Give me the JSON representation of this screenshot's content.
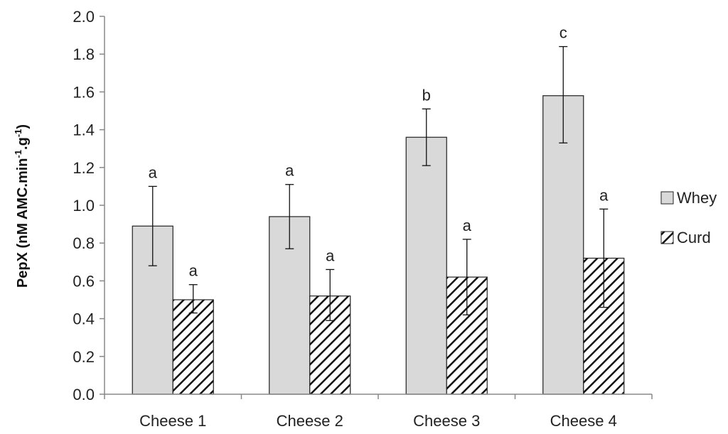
{
  "chart_data": {
    "type": "bar",
    "title": "",
    "xlabel": "",
    "ylabel": {
      "prefix": "PepX (nM AMC.min",
      "sup1": "-1",
      "middle": ".g",
      "sup2": "-1",
      "suffix": ")"
    },
    "ylim": [
      0,
      2.0
    ],
    "yticks": [
      "0.0",
      "0.2",
      "0.4",
      "0.6",
      "0.8",
      "1.0",
      "1.2",
      "1.4",
      "1.6",
      "1.8",
      "2.0"
    ],
    "categories": [
      "Cheese 1",
      "Cheese 2",
      "Cheese 3",
      "Cheese 4"
    ],
    "series": [
      {
        "name": "Whey",
        "pattern": "solid",
        "color": "#d9d9d9",
        "values": [
          0.89,
          0.94,
          1.36,
          1.58
        ],
        "error_low": [
          0.68,
          0.77,
          1.21,
          1.33
        ],
        "error_high": [
          1.1,
          1.11,
          1.51,
          1.84
        ],
        "significance": [
          "a",
          "a",
          "b",
          "c"
        ]
      },
      {
        "name": "Curd",
        "pattern": "diagonal-hatch",
        "color": "#000000",
        "values": [
          0.5,
          0.52,
          0.62,
          0.72
        ],
        "error_low": [
          0.43,
          0.39,
          0.42,
          0.46
        ],
        "error_high": [
          0.58,
          0.66,
          0.82,
          0.98
        ],
        "significance": [
          "a",
          "a",
          "a",
          "a"
        ]
      }
    ],
    "legend": {
      "position": "right",
      "entries": [
        "Whey",
        "Curd"
      ]
    }
  }
}
